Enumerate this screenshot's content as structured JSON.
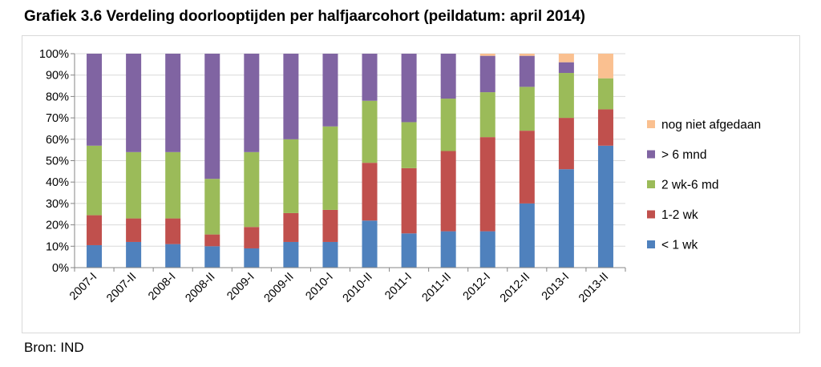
{
  "title": "Grafiek 3.6 Verdeling doorlooptijden per halfjaarcohort (peildatum: april 2014)",
  "source": "Bron: IND",
  "colors": {
    "< 1 wk": "#4f81bd",
    "1-2 wk": "#c0504d",
    "2 wk-6 md": "#9bbb59",
    "> 6 mnd": "#8064a2",
    "nog niet afgedaan": "#fac090",
    "gridline": "#d9d9d9",
    "axis": "#868686"
  },
  "chart_data": {
    "type": "bar",
    "stacked": true,
    "percent": true,
    "categories": [
      "2007-I",
      "2007-II",
      "2008-I",
      "2008-II",
      "2009-I",
      "2009-II",
      "2010-I",
      "2010-II",
      "2011-I",
      "2011-II",
      "2012-I",
      "2012-II",
      "2013-I",
      "2013-II"
    ],
    "yticks": [
      "0%",
      "10%",
      "20%",
      "30%",
      "40%",
      "50%",
      "60%",
      "70%",
      "80%",
      "90%",
      "100%"
    ],
    "ylim": [
      0,
      100
    ],
    "grid": true,
    "legend_position": "right",
    "series": [
      {
        "name": "< 1 wk",
        "values": [
          10.5,
          12,
          11,
          10,
          9,
          12,
          12,
          22,
          16,
          17,
          17,
          30,
          46,
          57
        ]
      },
      {
        "name": "1-2 wk",
        "values": [
          14,
          11,
          12,
          5.5,
          10,
          13.5,
          15,
          27,
          30.5,
          37.5,
          44,
          34,
          24,
          17
        ]
      },
      {
        "name": "2 wk-6 md",
        "values": [
          32.5,
          31,
          31,
          26,
          35,
          34.5,
          39,
          29,
          21.5,
          24.5,
          21,
          20.5,
          21,
          14.5
        ]
      },
      {
        "name": "> 6 mnd",
        "values": [
          43,
          46,
          46,
          58.5,
          46,
          40,
          34,
          22,
          32,
          21,
          17,
          14.5,
          5,
          0
        ]
      },
      {
        "name": "nog niet afgedaan",
        "values": [
          0,
          0,
          0,
          0,
          0,
          0,
          0,
          0,
          0,
          0,
          1,
          1,
          4,
          11.5
        ]
      }
    ],
    "legend_order": [
      "nog niet afgedaan",
      "> 6 mnd",
      "2 wk-6 md",
      "1-2 wk",
      "< 1 wk"
    ]
  }
}
